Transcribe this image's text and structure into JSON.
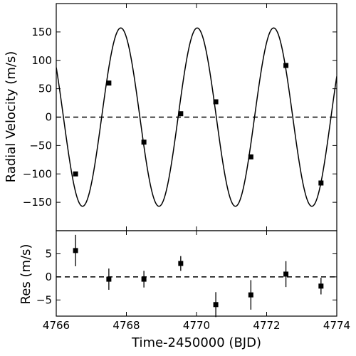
{
  "chart_data": [
    {
      "type": "scatter",
      "panel": "top",
      "xlabel": "",
      "ylabel": "Radial Velocity (m/s)",
      "xlim": [
        4766,
        4774
      ],
      "ylim": [
        -200,
        200
      ],
      "yticks": [
        -150,
        -100,
        -50,
        0,
        50,
        100,
        150
      ],
      "xticks": [
        4766,
        4768,
        4770,
        4772,
        4774
      ],
      "show_x_tick_labels": false,
      "grid": false,
      "reference_line": {
        "y": 0,
        "style": "dashed"
      },
      "model_curve": {
        "type": "sinusoid",
        "amplitude": 157,
        "period": 2.18,
        "peak_x": 4767.84
      },
      "series": [
        {
          "marker": "square",
          "x": [
            4766.55,
            4767.5,
            4768.5,
            4769.55,
            4770.55,
            4771.55,
            4772.55,
            4773.55
          ],
          "y": [
            -100,
            60,
            -44,
            6,
            27,
            -70,
            91,
            -116
          ]
        }
      ]
    },
    {
      "type": "scatter",
      "panel": "bottom",
      "xlabel": "Time-2450000 (BJD)",
      "ylabel": "Res (m/s)",
      "xlim": [
        4766,
        4774
      ],
      "ylim": [
        -8.5,
        10
      ],
      "yticks": [
        -5,
        0,
        5
      ],
      "xticks": [
        4766,
        4768,
        4770,
        4772,
        4774
      ],
      "grid": false,
      "reference_line": {
        "y": 0,
        "style": "dashed"
      },
      "series": [
        {
          "marker": "square",
          "x": [
            4766.55,
            4767.5,
            4768.5,
            4769.55,
            4770.55,
            4771.55,
            4772.55,
            4773.55
          ],
          "y": [
            5.7,
            -0.5,
            -0.5,
            2.9,
            -6.0,
            -3.9,
            0.6,
            -2.0
          ],
          "yerr": [
            3.4,
            2.3,
            1.8,
            1.6,
            2.7,
            3.2,
            2.8,
            1.8
          ]
        }
      ]
    }
  ]
}
